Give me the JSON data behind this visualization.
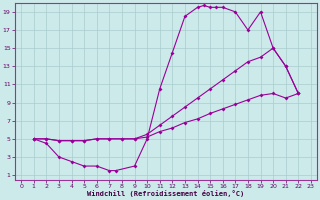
{
  "xlabel": "Windchill (Refroidissement éolien,°C)",
  "line_color": "#990099",
  "bg_color": "#cceaea",
  "grid_color": "#aacccc",
  "xlim": [
    -0.5,
    23.5
  ],
  "ylim": [
    0.5,
    20
  ],
  "xticks": [
    0,
    1,
    2,
    3,
    4,
    5,
    6,
    7,
    8,
    9,
    10,
    11,
    12,
    13,
    14,
    15,
    16,
    17,
    18,
    19,
    20,
    21,
    22,
    23
  ],
  "yticks": [
    1,
    3,
    5,
    7,
    9,
    11,
    13,
    15,
    17,
    19
  ],
  "c1x": [
    1,
    2,
    3,
    4,
    5,
    6,
    7,
    7.5,
    9,
    10,
    11,
    12,
    13,
    14,
    14.5,
    15,
    15.5,
    16,
    17,
    18,
    19,
    20,
    21,
    22
  ],
  "c1y": [
    5,
    4.5,
    3,
    2.5,
    2,
    2,
    1.5,
    1.5,
    2,
    5,
    10.5,
    14.5,
    18.5,
    19.5,
    19.7,
    19.5,
    19.5,
    19.5,
    19,
    17,
    19,
    15,
    13,
    10
  ],
  "c2x": [
    1,
    2,
    3,
    4,
    5,
    6,
    7,
    8,
    9,
    10,
    11,
    12,
    13,
    14,
    15,
    16,
    17,
    18,
    19,
    20,
    21,
    22
  ],
  "c2y": [
    5,
    5,
    4.8,
    4.8,
    4.8,
    5,
    5,
    5,
    5,
    5.5,
    6.5,
    7.5,
    8.5,
    9.5,
    10.5,
    11.5,
    12.5,
    13.5,
    14,
    15,
    13,
    10
  ],
  "c3x": [
    1,
    2,
    3,
    4,
    5,
    6,
    7,
    8,
    9,
    10,
    11,
    12,
    13,
    14,
    15,
    16,
    17,
    18,
    19,
    20,
    21,
    22
  ],
  "c3y": [
    5,
    5,
    4.8,
    4.8,
    4.8,
    5,
    5,
    5,
    5,
    5.2,
    5.8,
    6.2,
    6.8,
    7.2,
    7.8,
    8.3,
    8.8,
    9.3,
    9.8,
    10,
    9.5,
    10
  ]
}
